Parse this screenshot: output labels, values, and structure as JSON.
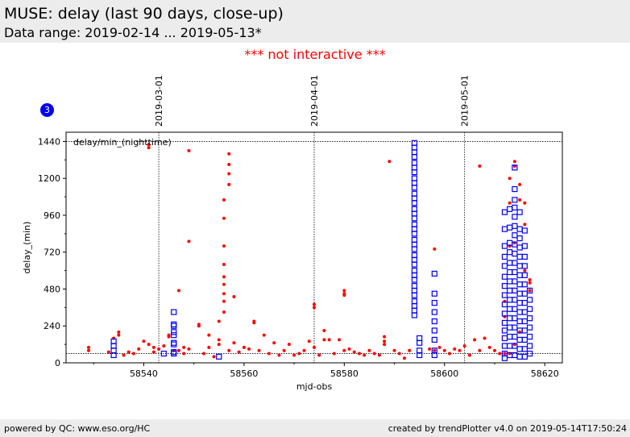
{
  "header": {
    "title": "MUSE: delay (last 90 days, close-up)",
    "subtitle": "Data range: 2019-02-14 ... 2019-05-13*"
  },
  "notice": "*** not interactive ***",
  "badge": "3",
  "footer": {
    "left": "powered by QC: www.eso.org/HC",
    "right": "created by trendPlotter v4.0 on 2019-05-14T17:50:24"
  },
  "colors": {
    "red": "#ff0000",
    "blue": "#0000ff"
  },
  "chart_data": {
    "type": "scatter",
    "xlabel": "mjd-obs",
    "ylabel": "delay_(min)",
    "xlim": [
      58524.5,
      58623.5
    ],
    "ylim": [
      0,
      1500
    ],
    "xticks": [
      58540,
      58560,
      58580,
      58600,
      58620
    ],
    "yticks": [
      0,
      240,
      480,
      720,
      960,
      1200,
      1440
    ],
    "annotation": "delay/min_(nighttime)",
    "hlines": [
      60,
      1440
    ],
    "date_markers": [
      {
        "label": "2019-03-01",
        "x": 58543
      },
      {
        "label": "2019-04-01",
        "x": 58574
      },
      {
        "label": "2019-05-01",
        "x": 58604
      }
    ],
    "series": [
      {
        "marker": "dot",
        "color": "#ff0000",
        "points": [
          [
            58529,
            100
          ],
          [
            58529,
            80
          ],
          [
            58533,
            70
          ],
          [
            58534,
            160
          ],
          [
            58535,
            200
          ],
          [
            58535,
            180
          ],
          [
            58536,
            50
          ],
          [
            58537,
            70
          ],
          [
            58538,
            60
          ],
          [
            58539,
            90
          ],
          [
            58540,
            140
          ],
          [
            58541,
            120
          ],
          [
            58541,
            1420
          ],
          [
            58541,
            1400
          ],
          [
            58542,
            100
          ],
          [
            58542,
            70
          ],
          [
            58543,
            90
          ],
          [
            58544,
            110
          ],
          [
            58545,
            170
          ],
          [
            58545,
            180
          ],
          [
            58546,
            80
          ],
          [
            58547,
            470
          ],
          [
            58547,
            80
          ],
          [
            58548,
            60
          ],
          [
            58548,
            100
          ],
          [
            58549,
            1380
          ],
          [
            58549,
            790
          ],
          [
            58549,
            90
          ],
          [
            58551,
            250
          ],
          [
            58551,
            240
          ],
          [
            58552,
            60
          ],
          [
            58553,
            180
          ],
          [
            58553,
            100
          ],
          [
            58554,
            40
          ],
          [
            58555,
            120
          ],
          [
            58555,
            150
          ],
          [
            58555,
            270
          ],
          [
            58556,
            400
          ],
          [
            58556,
            330
          ],
          [
            58556,
            450
          ],
          [
            58556,
            510
          ],
          [
            58556,
            560
          ],
          [
            58556,
            640
          ],
          [
            58556,
            760
          ],
          [
            58556,
            940
          ],
          [
            58556,
            1060
          ],
          [
            58557,
            1160
          ],
          [
            58557,
            1230
          ],
          [
            58557,
            1290
          ],
          [
            58557,
            1360
          ],
          [
            58557,
            80
          ],
          [
            58558,
            430
          ],
          [
            58558,
            130
          ],
          [
            58559,
            70
          ],
          [
            58560,
            100
          ],
          [
            58561,
            90
          ],
          [
            58562,
            270
          ],
          [
            58562,
            260
          ],
          [
            58563,
            80
          ],
          [
            58564,
            180
          ],
          [
            58565,
            60
          ],
          [
            58566,
            130
          ],
          [
            58567,
            50
          ],
          [
            58568,
            80
          ],
          [
            58569,
            120
          ],
          [
            58570,
            50
          ],
          [
            58571,
            60
          ],
          [
            58572,
            80
          ],
          [
            58573,
            140
          ],
          [
            58574,
            380
          ],
          [
            58574,
            360
          ],
          [
            58574,
            100
          ],
          [
            58575,
            50
          ],
          [
            58576,
            210
          ],
          [
            58576,
            150
          ],
          [
            58577,
            150
          ],
          [
            58578,
            60
          ],
          [
            58579,
            150
          ],
          [
            58580,
            80
          ],
          [
            58580,
            470
          ],
          [
            58580,
            450
          ],
          [
            58580,
            440
          ],
          [
            58581,
            90
          ],
          [
            58582,
            70
          ],
          [
            58583,
            60
          ],
          [
            58584,
            50
          ],
          [
            58585,
            80
          ],
          [
            58586,
            60
          ],
          [
            58587,
            50
          ],
          [
            58588,
            170
          ],
          [
            58588,
            140
          ],
          [
            58588,
            120
          ],
          [
            58589,
            1310
          ],
          [
            58590,
            80
          ],
          [
            58591,
            60
          ],
          [
            58592,
            30
          ],
          [
            58593,
            80
          ],
          [
            58597,
            90
          ],
          [
            58598,
            740
          ],
          [
            58598,
            80
          ],
          [
            58599,
            100
          ],
          [
            58600,
            80
          ],
          [
            58601,
            60
          ],
          [
            58602,
            90
          ],
          [
            58603,
            80
          ],
          [
            58604,
            110
          ],
          [
            58605,
            50
          ],
          [
            58606,
            150
          ],
          [
            58607,
            1280
          ],
          [
            58607,
            80
          ],
          [
            58608,
            160
          ],
          [
            58609,
            100
          ],
          [
            58610,
            80
          ],
          [
            58611,
            60
          ],
          [
            58612,
            60
          ],
          [
            58613,
            1200
          ],
          [
            58613,
            1040
          ],
          [
            58614,
            1310
          ],
          [
            58614,
            1280
          ],
          [
            58615,
            1160
          ],
          [
            58615,
            1060
          ],
          [
            58616,
            1040
          ],
          [
            58616,
            900
          ],
          [
            58617,
            540
          ],
          [
            58617,
            520
          ],
          [
            58614,
            780
          ],
          [
            58613,
            760
          ],
          [
            58612,
            400
          ],
          [
            58612,
            300
          ],
          [
            58613,
            60
          ],
          [
            58614,
            120
          ],
          [
            58615,
            200
          ],
          [
            58616,
            600
          ],
          [
            58617,
            470
          ]
        ]
      },
      {
        "marker": "square",
        "color": "#0000ff",
        "points": [
          [
            58534,
            140
          ],
          [
            58534,
            110
          ],
          [
            58534,
            80
          ],
          [
            58534,
            50
          ],
          [
            58544,
            60
          ],
          [
            58546,
            330
          ],
          [
            58546,
            250
          ],
          [
            58546,
            240
          ],
          [
            58546,
            200
          ],
          [
            58546,
            180
          ],
          [
            58546,
            130
          ],
          [
            58546,
            120
          ],
          [
            58546,
            70
          ],
          [
            58546,
            60
          ],
          [
            58555,
            40
          ],
          [
            58594,
            1430
          ],
          [
            58594,
            1400
          ],
          [
            58594,
            1370
          ],
          [
            58594,
            1340
          ],
          [
            58594,
            1300
          ],
          [
            58594,
            1270
          ],
          [
            58594,
            1240
          ],
          [
            58594,
            1200
          ],
          [
            58594,
            1170
          ],
          [
            58594,
            1140
          ],
          [
            58594,
            1100
          ],
          [
            58594,
            1070
          ],
          [
            58594,
            1040
          ],
          [
            58594,
            1000
          ],
          [
            58594,
            970
          ],
          [
            58594,
            940
          ],
          [
            58594,
            900
          ],
          [
            58594,
            870
          ],
          [
            58594,
            840
          ],
          [
            58594,
            800
          ],
          [
            58594,
            770
          ],
          [
            58594,
            740
          ],
          [
            58594,
            700
          ],
          [
            58594,
            670
          ],
          [
            58594,
            640
          ],
          [
            58594,
            600
          ],
          [
            58594,
            570
          ],
          [
            58594,
            540
          ],
          [
            58594,
            500
          ],
          [
            58594,
            470
          ],
          [
            58594,
            440
          ],
          [
            58594,
            400
          ],
          [
            58594,
            370
          ],
          [
            58594,
            340
          ],
          [
            58594,
            310
          ],
          [
            58595,
            160
          ],
          [
            58595,
            130
          ],
          [
            58595,
            80
          ],
          [
            58595,
            50
          ],
          [
            58598,
            580
          ],
          [
            58598,
            450
          ],
          [
            58598,
            390
          ],
          [
            58598,
            330
          ],
          [
            58598,
            270
          ],
          [
            58598,
            210
          ],
          [
            58598,
            150
          ],
          [
            58598,
            80
          ],
          [
            58598,
            50
          ],
          [
            58612,
            980
          ],
          [
            58612,
            870
          ],
          [
            58612,
            760
          ],
          [
            58612,
            690
          ],
          [
            58612,
            630
          ],
          [
            58612,
            560
          ],
          [
            58612,
            500
          ],
          [
            58612,
            440
          ],
          [
            58612,
            380
          ],
          [
            58612,
            320
          ],
          [
            58612,
            260
          ],
          [
            58612,
            210
          ],
          [
            58612,
            160
          ],
          [
            58612,
            110
          ],
          [
            58612,
            60
          ],
          [
            58612,
            30
          ],
          [
            58613,
            1000
          ],
          [
            58613,
            880
          ],
          [
            58613,
            780
          ],
          [
            58613,
            720
          ],
          [
            58613,
            650
          ],
          [
            58613,
            590
          ],
          [
            58613,
            530
          ],
          [
            58613,
            470
          ],
          [
            58613,
            410
          ],
          [
            58613,
            350
          ],
          [
            58613,
            290
          ],
          [
            58613,
            230
          ],
          [
            58613,
            170
          ],
          [
            58613,
            110
          ],
          [
            58613,
            50
          ],
          [
            58614,
            1270
          ],
          [
            58614,
            1130
          ],
          [
            58614,
            1060
          ],
          [
            58614,
            1010
          ],
          [
            58614,
            950
          ],
          [
            58614,
            890
          ],
          [
            58614,
            830
          ],
          [
            58614,
            770
          ],
          [
            58614,
            710
          ],
          [
            58614,
            650
          ],
          [
            58614,
            590
          ],
          [
            58614,
            530
          ],
          [
            58614,
            470
          ],
          [
            58614,
            410
          ],
          [
            58614,
            350
          ],
          [
            58614,
            290
          ],
          [
            58614,
            230
          ],
          [
            58614,
            170
          ],
          [
            58614,
            110
          ],
          [
            58614,
            50
          ],
          [
            58615,
            980
          ],
          [
            58615,
            870
          ],
          [
            58615,
            810
          ],
          [
            58615,
            750
          ],
          [
            58615,
            690
          ],
          [
            58615,
            630
          ],
          [
            58615,
            570
          ],
          [
            58615,
            510
          ],
          [
            58615,
            450
          ],
          [
            58615,
            390
          ],
          [
            58615,
            330
          ],
          [
            58615,
            270
          ],
          [
            58615,
            210
          ],
          [
            58615,
            150
          ],
          [
            58615,
            90
          ],
          [
            58615,
            40
          ],
          [
            58616,
            860
          ],
          [
            58616,
            760
          ],
          [
            58616,
            690
          ],
          [
            58616,
            630
          ],
          [
            58616,
            570
          ],
          [
            58616,
            510
          ],
          [
            58616,
            450
          ],
          [
            58616,
            390
          ],
          [
            58616,
            330
          ],
          [
            58616,
            270
          ],
          [
            58616,
            210
          ],
          [
            58616,
            150
          ],
          [
            58616,
            90
          ],
          [
            58616,
            40
          ],
          [
            58617,
            470
          ],
          [
            58617,
            410
          ],
          [
            58617,
            350
          ],
          [
            58617,
            290
          ],
          [
            58617,
            230
          ],
          [
            58617,
            170
          ],
          [
            58617,
            110
          ],
          [
            58617,
            60
          ]
        ]
      }
    ]
  }
}
